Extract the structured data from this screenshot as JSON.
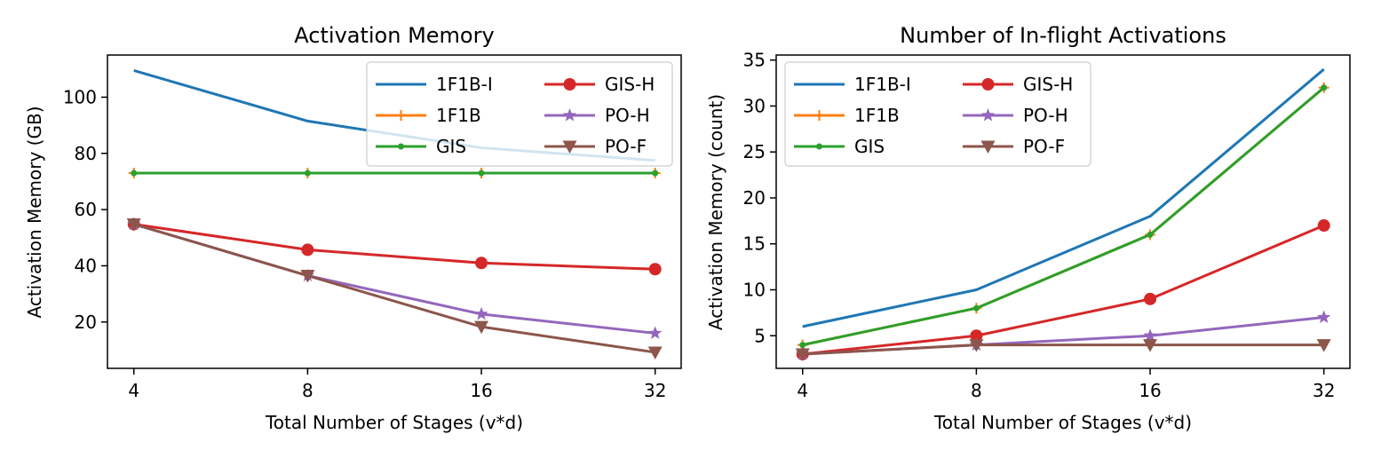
{
  "chart_data": [
    {
      "type": "line",
      "title": "Activation Memory",
      "xlabel": "Total Number of Stages (v*d)",
      "ylabel": "Activation Memory (GB)",
      "x": [
        4,
        8,
        16,
        32
      ],
      "x_tick_labels": [
        "4",
        "8",
        "16",
        "32"
      ],
      "x_scale": "log2",
      "xlim": [
        3.6,
        35.5
      ],
      "ylim": [
        3.5,
        115
      ],
      "y_ticks": [
        20,
        40,
        60,
        80,
        100
      ],
      "y_tick_labels": [
        "20",
        "40",
        "60",
        "80",
        "100"
      ],
      "legend": "top-right",
      "legend_columns": 2,
      "grid": false,
      "series": [
        {
          "name": "1F1B-I",
          "values": [
            109.5,
            91.5,
            82,
            77.5
          ],
          "color": "#1f77b4",
          "marker": "none"
        },
        {
          "name": "1F1B",
          "values": [
            73,
            73,
            73,
            73
          ],
          "color": "#ff7f0e",
          "marker": "plus"
        },
        {
          "name": "GIS",
          "values": [
            73,
            73,
            73,
            73
          ],
          "color": "#2ca02c",
          "marker": "dot"
        },
        {
          "name": "GIS-H",
          "values": [
            54.8,
            45.7,
            41,
            38.8
          ],
          "color": "#d62728",
          "marker": "circle"
        },
        {
          "name": "PO-H",
          "values": [
            54.8,
            36.5,
            22.8,
            16
          ],
          "color": "#9467bd",
          "marker": "star"
        },
        {
          "name": "PO-F",
          "values": [
            54.8,
            36.5,
            18.3,
            9.2
          ],
          "color": "#8c564b",
          "marker": "triangle-down"
        }
      ]
    },
    {
      "type": "line",
      "title": "Number of In-flight Activations",
      "xlabel": "Total Number of Stages (v*d)",
      "ylabel": "Activation Memory (count)",
      "x": [
        4,
        8,
        16,
        32
      ],
      "x_tick_labels": [
        "4",
        "8",
        "16",
        "32"
      ],
      "x_scale": "log2",
      "xlim": [
        3.6,
        35.5
      ],
      "ylim": [
        1.45,
        35.55
      ],
      "y_ticks": [
        5,
        10,
        15,
        20,
        25,
        30,
        35
      ],
      "y_tick_labels": [
        "5",
        "10",
        "15",
        "20",
        "25",
        "30",
        "35"
      ],
      "legend": "top-left",
      "legend_columns": 2,
      "grid": false,
      "series": [
        {
          "name": "1F1B-I",
          "values": [
            6,
            10,
            18,
            34
          ],
          "color": "#1f77b4",
          "marker": "none"
        },
        {
          "name": "1F1B",
          "values": [
            4,
            8,
            16,
            32
          ],
          "color": "#ff7f0e",
          "marker": "plus"
        },
        {
          "name": "GIS",
          "values": [
            4,
            8,
            16,
            32
          ],
          "color": "#2ca02c",
          "marker": "dot"
        },
        {
          "name": "GIS-H",
          "values": [
            3,
            5,
            9,
            17
          ],
          "color": "#d62728",
          "marker": "circle"
        },
        {
          "name": "PO-H",
          "values": [
            3,
            4,
            5,
            7
          ],
          "color": "#9467bd",
          "marker": "star"
        },
        {
          "name": "PO-F",
          "values": [
            3,
            4,
            4,
            4
          ],
          "color": "#8c564b",
          "marker": "triangle-down"
        }
      ]
    }
  ]
}
